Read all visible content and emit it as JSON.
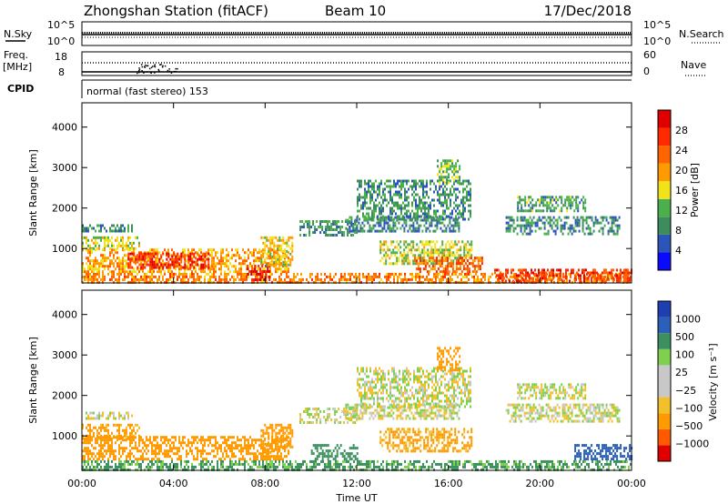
{
  "header": {
    "station": "Zhongshan Station (fitACF)",
    "beam": "Beam 10",
    "date": "17/Dec/2018"
  },
  "strip": {
    "nsky_label": "N.Sky",
    "nsearch_label": "N.Search",
    "nsky_top_tick": "10^5",
    "nsky_bottom_tick": "10^0",
    "freq_label": "Freq.",
    "freq_unit": "[MHz]",
    "freq_top_tick": "18",
    "freq_bottom_tick": "8",
    "nave_label": "Nave",
    "nave_top_tick": "60",
    "nave_bottom_tick": "0",
    "cpid_label": "CPID",
    "mode_text": "normal (fast stereo) 153"
  },
  "colors": {
    "power": [
      "#0a0aff",
      "#2b55b8",
      "#3c8c5e",
      "#4bb04b",
      "#f2e21a",
      "#ff9a00",
      "#ff6400",
      "#ff2a00",
      "#e00000"
    ],
    "velocity": [
      "#e00000",
      "#ff5a00",
      "#ff9a00",
      "#f2c02a",
      "#c8c8c8",
      "#c8c8c8",
      "#7fd04f",
      "#3c9060",
      "#2b5fb8",
      "#1f3fb0"
    ]
  },
  "chart_data": [
    {
      "type": "heatmap",
      "name": "power",
      "xlabel": "",
      "ylabel": "Slant Range [km]",
      "y_ticks": [
        "1000",
        "2000",
        "3000",
        "4000"
      ],
      "ylim": [
        150,
        4600
      ],
      "xlim": [
        0,
        24
      ],
      "colorbar_label": "Power [dB]",
      "colorbar_ticks": [
        "4",
        "8",
        "12",
        "16",
        "20",
        "24",
        "28"
      ],
      "clim": [
        0,
        30
      ],
      "regions": [
        {
          "t": [
            0,
            2.2
          ],
          "r": [
            1450,
            1600
          ],
          "v": 8
        },
        {
          "t": [
            0,
            2.5
          ],
          "r": [
            1000,
            1300
          ],
          "v": 14
        },
        {
          "t": [
            0,
            9
          ],
          "r": [
            450,
            1000
          ],
          "v": 18
        },
        {
          "t": [
            2,
            5.5
          ],
          "r": [
            500,
            900
          ],
          "v": 26
        },
        {
          "t": [
            0,
            24
          ],
          "r": [
            180,
            400
          ],
          "v": 20
        },
        {
          "t": [
            7.2,
            8.2
          ],
          "r": [
            200,
            600
          ],
          "v": 28
        },
        {
          "t": [
            7.8,
            9.2
          ],
          "r": [
            600,
            1300
          ],
          "v": 16
        },
        {
          "t": [
            9.5,
            12
          ],
          "r": [
            1300,
            1700
          ],
          "v": 9
        },
        {
          "t": [
            11.5,
            16.5
          ],
          "r": [
            1400,
            1800
          ],
          "v": 8
        },
        {
          "t": [
            12,
            17
          ],
          "r": [
            1700,
            2700
          ],
          "v": 9
        },
        {
          "t": [
            13,
            17
          ],
          "r": [
            600,
            1200
          ],
          "v": 14
        },
        {
          "t": [
            14.5,
            17.5
          ],
          "r": [
            400,
            800
          ],
          "v": 22
        },
        {
          "t": [
            18.5,
            23.5
          ],
          "r": [
            1350,
            1800
          ],
          "v": 8
        },
        {
          "t": [
            19,
            22
          ],
          "r": [
            1900,
            2300
          ],
          "v": 10
        },
        {
          "t": [
            18,
            24
          ],
          "r": [
            200,
            500
          ],
          "v": 24
        },
        {
          "t": [
            15.5,
            16.5
          ],
          "r": [
            2600,
            3200
          ],
          "v": 12
        }
      ]
    },
    {
      "type": "heatmap",
      "name": "velocity",
      "xlabel": "Time UT",
      "ylabel": "Slant Range [km]",
      "x_ticks": [
        "00:00",
        "04:00",
        "08:00",
        "12:00",
        "16:00",
        "20:00",
        "00:00"
      ],
      "y_ticks": [
        "1000",
        "2000",
        "3000",
        "4000"
      ],
      "ylim": [
        150,
        4600
      ],
      "xlim": [
        0,
        24
      ],
      "colorbar_label": "Velocity [m s⁻¹]",
      "colorbar_ticks": [
        "1000",
        "500",
        "100",
        "25",
        "−25",
        "−100",
        "−500",
        "−1000"
      ],
      "regions": [
        {
          "t": [
            0,
            2.2
          ],
          "r": [
            1450,
            1600
          ],
          "v": 0
        },
        {
          "t": [
            0,
            2.5
          ],
          "r": [
            900,
            1300
          ],
          "v": -150
        },
        {
          "t": [
            0,
            9
          ],
          "r": [
            400,
            1000
          ],
          "v": -200
        },
        {
          "t": [
            0,
            24
          ],
          "r": [
            180,
            400
          ],
          "v": 150
        },
        {
          "t": [
            7.8,
            9.2
          ],
          "r": [
            600,
            1300
          ],
          "v": -300
        },
        {
          "t": [
            9.5,
            12
          ],
          "r": [
            1300,
            1700
          ],
          "v": 0
        },
        {
          "t": [
            11.5,
            16.5
          ],
          "r": [
            1400,
            1800
          ],
          "v": 0
        },
        {
          "t": [
            12,
            17
          ],
          "r": [
            1700,
            2700
          ],
          "v": 0
        },
        {
          "t": [
            13,
            17
          ],
          "r": [
            600,
            1200
          ],
          "v": -150
        },
        {
          "t": [
            10,
            12
          ],
          "r": [
            400,
            800
          ],
          "v": 400
        },
        {
          "t": [
            18.5,
            23.5
          ],
          "r": [
            1350,
            1800
          ],
          "v": 0
        },
        {
          "t": [
            19,
            22
          ],
          "r": [
            1900,
            2300
          ],
          "v": 0
        },
        {
          "t": [
            21.5,
            24
          ],
          "r": [
            400,
            800
          ],
          "v": 800
        },
        {
          "t": [
            15.5,
            16.5
          ],
          "r": [
            2600,
            3200
          ],
          "v": -300
        }
      ]
    }
  ]
}
